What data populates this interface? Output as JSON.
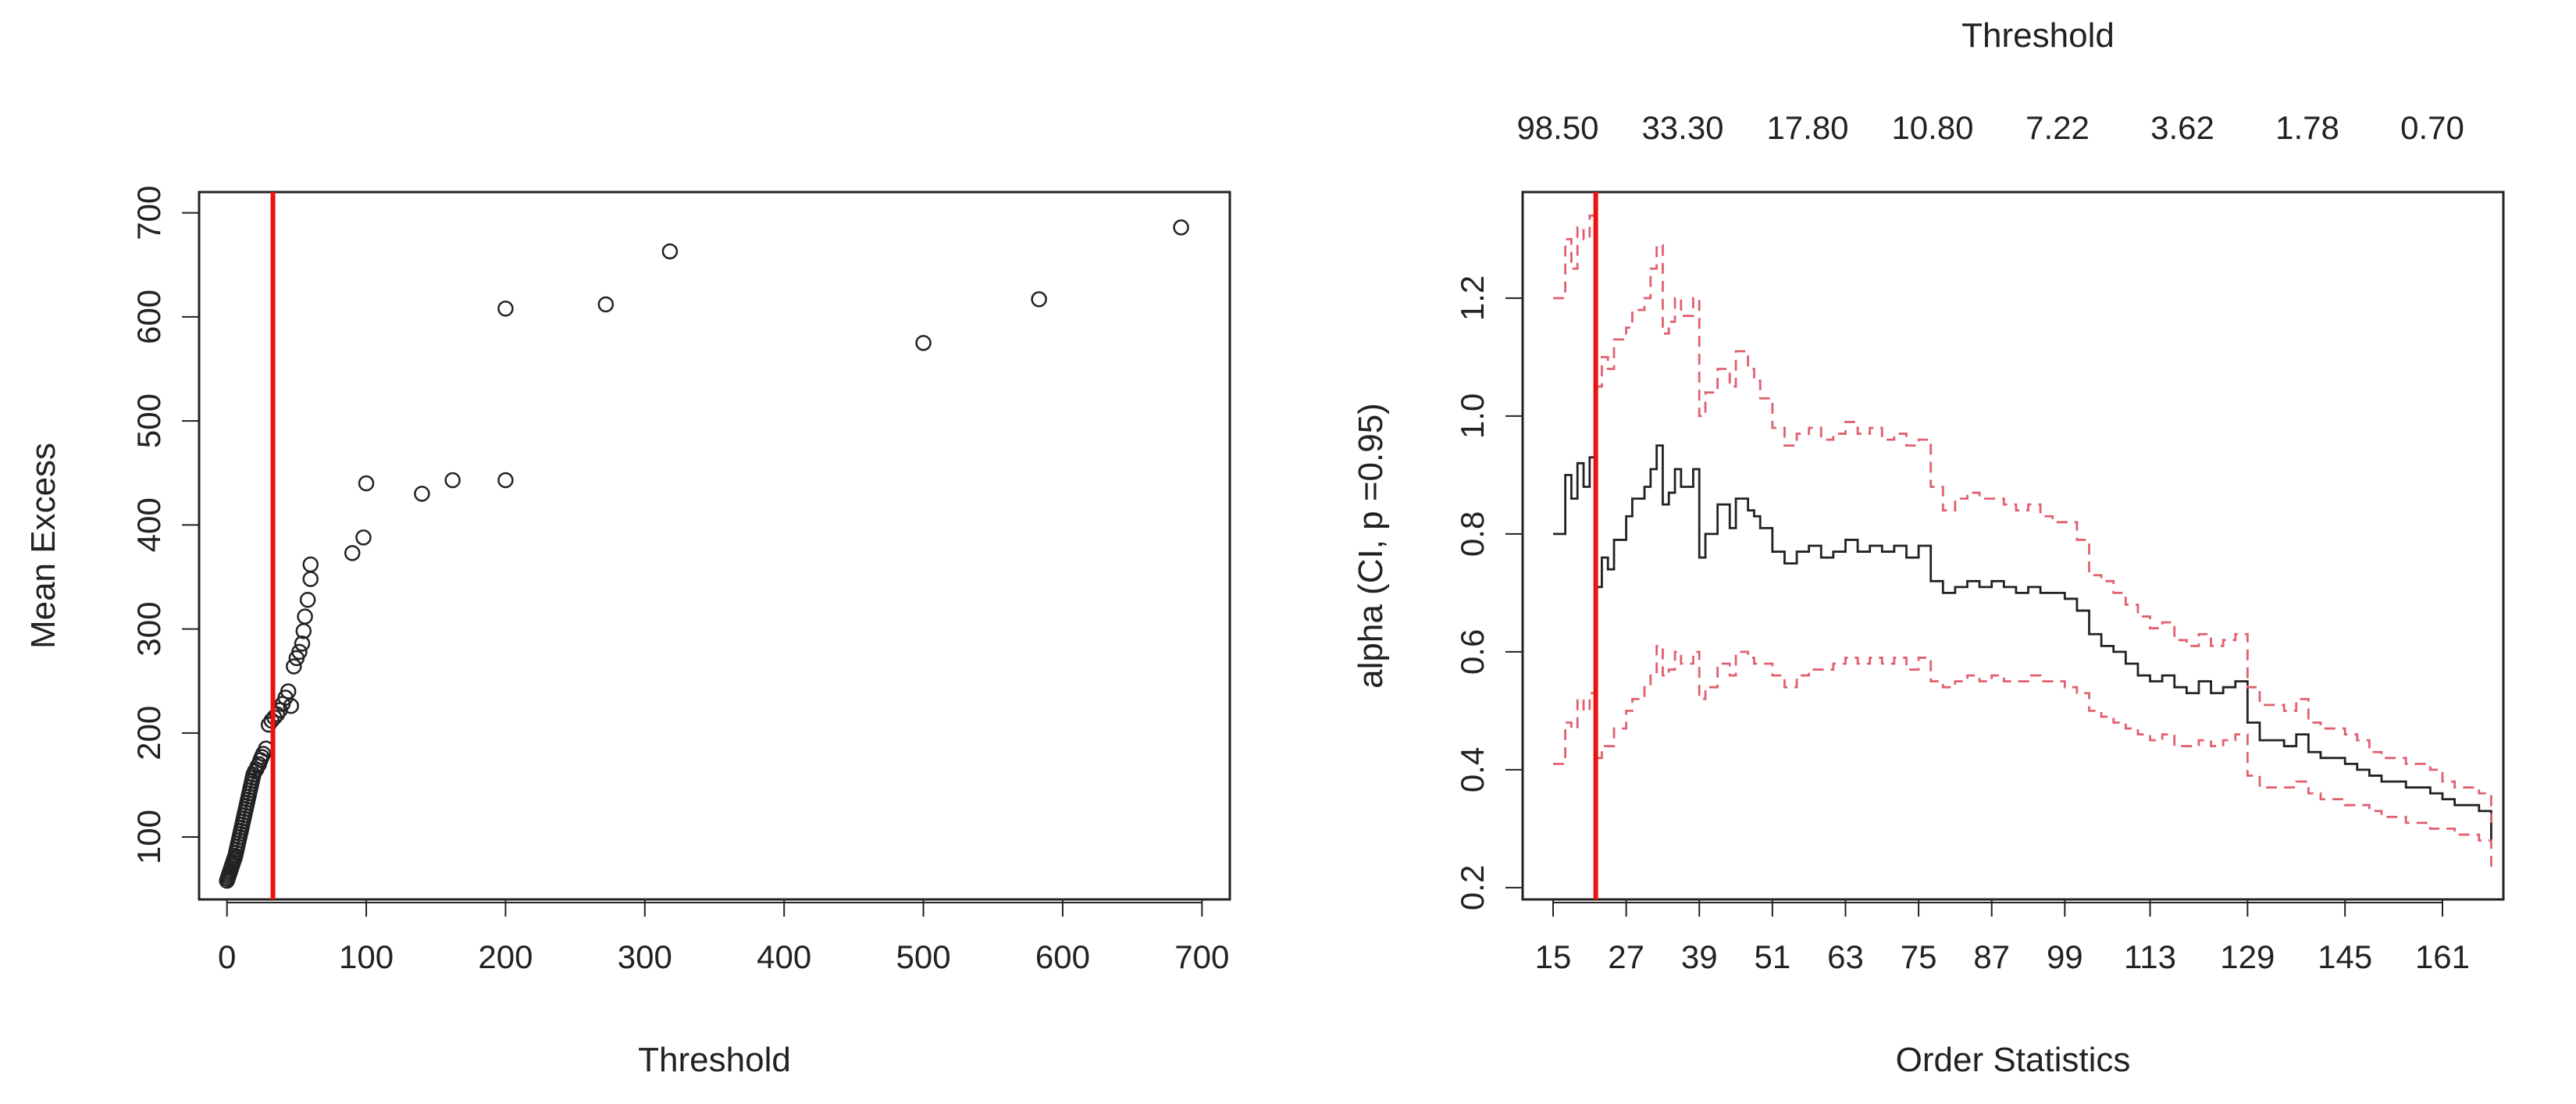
{
  "colors": {
    "axis": "#222222",
    "points": "#222222",
    "threshold_line": "#ee1111",
    "estimate_line": "#222222",
    "ci_lines": "#e06070"
  },
  "chart_data": [
    {
      "type": "scatter",
      "title": "",
      "xlabel": "Threshold",
      "ylabel": "Mean Excess",
      "xlim": [
        -20,
        720
      ],
      "ylim": [
        40,
        720
      ],
      "xticks": [
        0,
        100,
        200,
        300,
        400,
        500,
        600,
        700
      ],
      "yticks": [
        100,
        200,
        300,
        400,
        500,
        600,
        700
      ],
      "grid": false,
      "vline": 33,
      "points": [
        [
          0,
          58
        ],
        [
          0.5,
          60
        ],
        [
          1,
          62
        ],
        [
          1.5,
          64
        ],
        [
          2,
          66
        ],
        [
          2.5,
          68
        ],
        [
          3,
          70
        ],
        [
          3.5,
          72
        ],
        [
          4,
          74
        ],
        [
          4.5,
          76
        ],
        [
          5,
          78
        ],
        [
          5.5,
          80
        ],
        [
          6,
          82
        ],
        [
          6.5,
          85
        ],
        [
          7,
          88
        ],
        [
          7.5,
          91
        ],
        [
          8,
          94
        ],
        [
          8.5,
          97
        ],
        [
          9,
          100
        ],
        [
          9.5,
          103
        ],
        [
          10,
          106
        ],
        [
          10.5,
          109
        ],
        [
          11,
          112
        ],
        [
          11.5,
          115
        ],
        [
          12,
          118
        ],
        [
          12.5,
          121
        ],
        [
          13,
          124
        ],
        [
          13.5,
          127
        ],
        [
          14,
          130
        ],
        [
          14.5,
          133
        ],
        [
          15,
          136
        ],
        [
          15.5,
          139
        ],
        [
          16,
          142
        ],
        [
          16.5,
          145
        ],
        [
          17,
          148
        ],
        [
          17.5,
          151
        ],
        [
          18,
          154
        ],
        [
          18.5,
          157
        ],
        [
          19,
          160
        ],
        [
          20,
          163
        ],
        [
          21,
          165
        ],
        [
          22,
          168
        ],
        [
          23,
          170
        ],
        [
          24,
          174
        ],
        [
          25,
          177
        ],
        [
          26,
          180
        ],
        [
          28,
          185
        ],
        [
          30,
          208
        ],
        [
          32,
          212
        ],
        [
          34,
          215
        ],
        [
          36,
          218
        ],
        [
          38,
          222
        ],
        [
          40,
          228
        ],
        [
          42,
          234
        ],
        [
          44,
          240
        ],
        [
          46,
          226
        ],
        [
          48,
          264
        ],
        [
          50,
          272
        ],
        [
          52,
          278
        ],
        [
          54,
          286
        ],
        [
          55,
          298
        ],
        [
          56,
          312
        ],
        [
          58,
          328
        ],
        [
          60,
          348
        ],
        [
          60,
          362
        ],
        [
          90,
          373
        ],
        [
          98,
          388
        ],
        [
          100,
          440
        ],
        [
          140,
          430
        ],
        [
          162,
          443
        ],
        [
          200,
          443
        ],
        [
          200,
          608
        ],
        [
          272,
          612
        ],
        [
          318,
          663
        ],
        [
          500,
          575
        ],
        [
          583,
          617
        ],
        [
          685,
          686
        ]
      ]
    },
    {
      "type": "line",
      "title": "",
      "xlabel": "Order Statistics",
      "ylabel": "alpha (CI, p =0.95)",
      "top_axis_label": "Threshold",
      "top_tick_labels": [
        "98.50",
        "33.30",
        "17.80",
        "10.80",
        "7.22",
        "3.62",
        "1.78",
        "0.70"
      ],
      "xlim": [
        10,
        171
      ],
      "ylim": [
        0.18,
        1.38
      ],
      "xticks": [
        15,
        27,
        39,
        51,
        63,
        75,
        87,
        99,
        113,
        129,
        145,
        161
      ],
      "yticks": [
        0.2,
        0.4,
        0.6,
        0.8,
        1.0,
        1.2
      ],
      "ytick_labels": [
        "0.2",
        "0.4",
        "0.6",
        "0.8",
        "1.0",
        "1.2"
      ],
      "grid": false,
      "vline": 22,
      "x": [
        15,
        17,
        18,
        19,
        20,
        21,
        22,
        23,
        24,
        25,
        27,
        28,
        30,
        31,
        32,
        33,
        34,
        35,
        36,
        38,
        39,
        40,
        42,
        44,
        45,
        47,
        48,
        49,
        51,
        53,
        55,
        57,
        59,
        61,
        63,
        65,
        67,
        69,
        71,
        73,
        75,
        77,
        79,
        81,
        83,
        85,
        87,
        89,
        91,
        93,
        95,
        97,
        99,
        101,
        103,
        105,
        107,
        109,
        111,
        113,
        115,
        117,
        119,
        121,
        123,
        125,
        127,
        129,
        131,
        133,
        135,
        137,
        139,
        141,
        143,
        145,
        147,
        149,
        151,
        153,
        155,
        157,
        159,
        161,
        163,
        165,
        167,
        169
      ],
      "series": [
        {
          "values": [
            0.8,
            0.9,
            0.86,
            0.92,
            0.88,
            0.93,
            0.71,
            0.76,
            0.74,
            0.79,
            0.83,
            0.86,
            0.88,
            0.91,
            0.95,
            0.85,
            0.87,
            0.91,
            0.88,
            0.91,
            0.76,
            0.8,
            0.85,
            0.81,
            0.86,
            0.84,
            0.83,
            0.81,
            0.77,
            0.75,
            0.77,
            0.78,
            0.76,
            0.77,
            0.79,
            0.77,
            0.78,
            0.77,
            0.78,
            0.76,
            0.78,
            0.72,
            0.7,
            0.71,
            0.72,
            0.71,
            0.72,
            0.71,
            0.7,
            0.71,
            0.7,
            0.7,
            0.69,
            0.67,
            0.63,
            0.61,
            0.6,
            0.58,
            0.56,
            0.55,
            0.56,
            0.54,
            0.53,
            0.55,
            0.53,
            0.54,
            0.55,
            0.48,
            0.45,
            0.45,
            0.44,
            0.46,
            0.43,
            0.42,
            0.42,
            0.41,
            0.4,
            0.39,
            0.38,
            0.38,
            0.37,
            0.37,
            0.36,
            0.35,
            0.34,
            0.34,
            0.33,
            0.28
          ]
        },
        {
          "values": [
            1.2,
            1.3,
            1.25,
            1.32,
            1.3,
            1.34,
            1.05,
            1.1,
            1.08,
            1.13,
            1.15,
            1.18,
            1.2,
            1.25,
            1.29,
            1.14,
            1.16,
            1.2,
            1.17,
            1.2,
            1.0,
            1.04,
            1.08,
            1.05,
            1.11,
            1.08,
            1.06,
            1.03,
            0.98,
            0.95,
            0.97,
            0.98,
            0.96,
            0.97,
            0.99,
            0.97,
            0.98,
            0.96,
            0.97,
            0.95,
            0.96,
            0.88,
            0.84,
            0.86,
            0.87,
            0.86,
            0.86,
            0.85,
            0.84,
            0.85,
            0.83,
            0.82,
            0.82,
            0.79,
            0.73,
            0.72,
            0.7,
            0.68,
            0.66,
            0.64,
            0.65,
            0.62,
            0.61,
            0.63,
            0.61,
            0.62,
            0.63,
            0.54,
            0.51,
            0.51,
            0.5,
            0.52,
            0.48,
            0.47,
            0.47,
            0.46,
            0.45,
            0.43,
            0.42,
            0.42,
            0.41,
            0.41,
            0.4,
            0.38,
            0.37,
            0.37,
            0.36,
            0.31
          ]
        },
        {
          "values": [
            0.41,
            0.48,
            0.47,
            0.52,
            0.5,
            0.53,
            0.42,
            0.44,
            0.44,
            0.47,
            0.5,
            0.52,
            0.54,
            0.56,
            0.61,
            0.56,
            0.57,
            0.6,
            0.58,
            0.6,
            0.52,
            0.54,
            0.58,
            0.56,
            0.6,
            0.59,
            0.58,
            0.58,
            0.56,
            0.54,
            0.56,
            0.57,
            0.57,
            0.58,
            0.59,
            0.58,
            0.59,
            0.58,
            0.59,
            0.57,
            0.59,
            0.55,
            0.54,
            0.55,
            0.56,
            0.55,
            0.56,
            0.55,
            0.55,
            0.56,
            0.55,
            0.55,
            0.54,
            0.53,
            0.5,
            0.49,
            0.48,
            0.47,
            0.46,
            0.45,
            0.46,
            0.44,
            0.44,
            0.45,
            0.44,
            0.45,
            0.46,
            0.39,
            0.37,
            0.37,
            0.37,
            0.38,
            0.36,
            0.35,
            0.35,
            0.34,
            0.34,
            0.33,
            0.32,
            0.32,
            0.31,
            0.31,
            0.3,
            0.3,
            0.29,
            0.29,
            0.28,
            0.23
          ]
        }
      ]
    }
  ]
}
